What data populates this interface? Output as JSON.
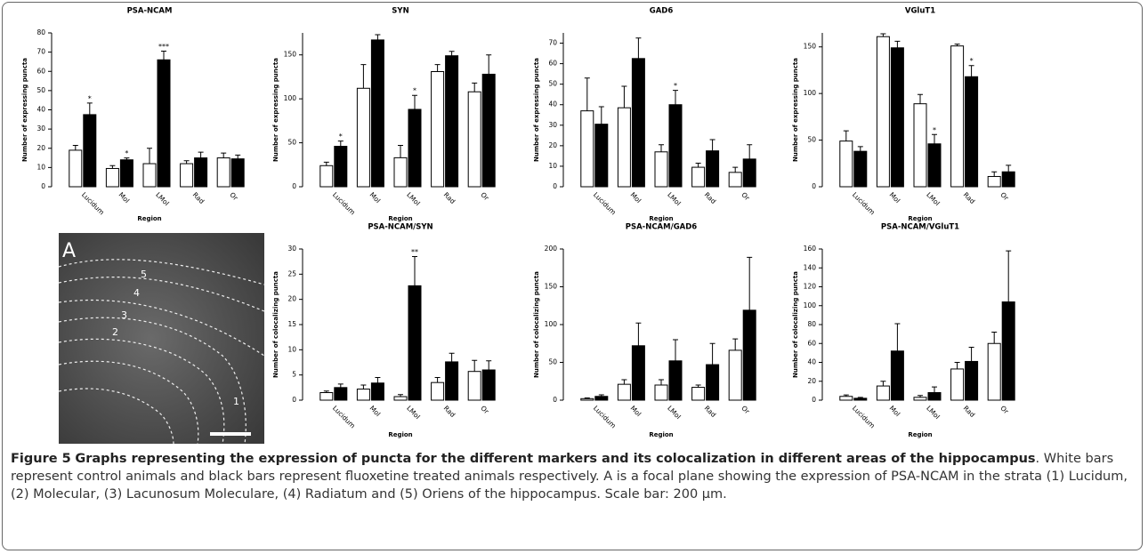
{
  "chart_data": [
    {
      "type": "bar",
      "title": "PSA-NCAM",
      "xlabel": "Region",
      "ylabel": "Number of expressing puncta",
      "categories": [
        "Lucidum",
        "Mol",
        "LMol",
        "Rad",
        "Or"
      ],
      "ylim": [
        0,
        80
      ],
      "yticks": [
        0,
        10,
        20,
        30,
        40,
        50,
        60,
        70,
        80
      ],
      "series": [
        {
          "color": "#ffffff",
          "values": [
            19,
            9.5,
            12,
            12,
            15
          ],
          "errors": [
            2.5,
            1.5,
            8,
            1.5,
            2.5
          ]
        },
        {
          "color": "#000000",
          "values": [
            37.5,
            14,
            66,
            15,
            14.5
          ],
          "errors": [
            6,
            1,
            4.5,
            3,
            2
          ],
          "significance": [
            "*",
            "*",
            "***",
            null,
            null
          ]
        }
      ]
    },
    {
      "type": "bar",
      "title": "SYN",
      "xlabel": "Region",
      "ylabel": "Number of expressing puncta",
      "categories": [
        "Lucidum",
        "Mol",
        "LMol",
        "Rad",
        "Or"
      ],
      "ylim": [
        0,
        175
      ],
      "yticks": [
        0,
        50,
        100,
        150
      ],
      "series": [
        {
          "color": "#ffffff",
          "values": [
            24,
            112,
            33,
            131,
            108
          ],
          "errors": [
            4,
            27,
            14,
            8,
            10
          ]
        },
        {
          "color": "#000000",
          "values": [
            46,
            167,
            88,
            149,
            128
          ],
          "errors": [
            6,
            6,
            16,
            5,
            22
          ],
          "significance": [
            "*",
            null,
            "*",
            null,
            null
          ]
        }
      ]
    },
    {
      "type": "bar",
      "title": "GAD6",
      "xlabel": "Region",
      "ylabel": "Number of expressing puncta",
      "categories": [
        "Lucidum",
        "Mol",
        "LMol",
        "Rad",
        "Or"
      ],
      "ylim": [
        0,
        75
      ],
      "yticks": [
        0,
        10,
        20,
        30,
        40,
        50,
        60,
        70
      ],
      "series": [
        {
          "color": "#ffffff",
          "values": [
            37,
            38.5,
            17,
            9.5,
            7
          ],
          "errors": [
            16,
            10.5,
            3.5,
            2,
            2.5
          ]
        },
        {
          "color": "#000000",
          "values": [
            30.5,
            62.5,
            40,
            17.5,
            13.5
          ],
          "errors": [
            8.5,
            10,
            7,
            5.5,
            7
          ],
          "significance": [
            null,
            null,
            "*",
            null,
            null
          ]
        }
      ]
    },
    {
      "type": "bar",
      "title": "VGluT1",
      "xlabel": "Region",
      "ylabel": "Number of expressing puncta",
      "categories": [
        "Lucidum",
        "Mol",
        "LMol",
        "Rad",
        "Or"
      ],
      "ylim": [
        0,
        165
      ],
      "yticks": [
        0,
        50,
        100,
        150
      ],
      "series": [
        {
          "color": "#ffffff",
          "values": [
            49,
            161,
            89,
            151,
            11
          ],
          "errors": [
            11,
            3,
            10,
            2,
            5
          ]
        },
        {
          "color": "#000000",
          "values": [
            38,
            149,
            46,
            118,
            16
          ],
          "errors": [
            5,
            7,
            10,
            12,
            7
          ],
          "significance": [
            null,
            null,
            "*",
            "*",
            null
          ]
        }
      ]
    },
    {
      "type": "bar",
      "title": "PSA-NCAM/SYN",
      "xlabel": "Region",
      "ylabel": "Number of colocalizing puncta",
      "categories": [
        "Lucidum",
        "Mol",
        "LMol",
        "Rad",
        "Or"
      ],
      "ylim": [
        0,
        30
      ],
      "yticks": [
        0,
        5,
        10,
        15,
        20,
        25,
        30
      ],
      "series": [
        {
          "color": "#ffffff",
          "values": [
            1.5,
            2.2,
            0.7,
            3.5,
            5.7
          ],
          "errors": [
            0.3,
            0.8,
            0.4,
            1,
            2.2
          ]
        },
        {
          "color": "#000000",
          "values": [
            2.5,
            3.4,
            22.7,
            7.6,
            6.0
          ],
          "errors": [
            0.7,
            1.1,
            5.8,
            1.7,
            1.8
          ],
          "significance": [
            null,
            null,
            "**",
            null,
            null
          ]
        }
      ]
    },
    {
      "type": "bar",
      "title": "PSA-NCAM/GAD6",
      "xlabel": "Region",
      "ylabel": "Number of colocalizing puncta",
      "categories": [
        "Lucidum",
        "Mol",
        "LMol",
        "Rad",
        "Or"
      ],
      "ylim": [
        0,
        200
      ],
      "yticks": [
        0,
        50,
        100,
        150,
        200
      ],
      "series": [
        {
          "color": "#ffffff",
          "values": [
            2,
            21,
            20,
            17,
            66
          ],
          "errors": [
            1,
            6,
            7,
            3,
            15
          ]
        },
        {
          "color": "#000000",
          "values": [
            5,
            72,
            52,
            47,
            119
          ],
          "errors": [
            2,
            30,
            28,
            28,
            70
          ]
        }
      ]
    },
    {
      "type": "bar",
      "title": "PSA-NCAM/VGluT1",
      "xlabel": "Region",
      "ylabel": "Number of colocalizing puncta",
      "categories": [
        "Lucidum",
        "Mol",
        "LMol",
        "Rad",
        "Or"
      ],
      "ylim": [
        0,
        160
      ],
      "yticks": [
        0,
        20,
        40,
        60,
        80,
        100,
        120,
        140,
        160
      ],
      "series": [
        {
          "color": "#ffffff",
          "values": [
            4,
            15,
            3,
            33,
            60
          ],
          "errors": [
            1.5,
            5,
            2,
            7,
            12
          ]
        },
        {
          "color": "#000000",
          "values": [
            2,
            52,
            8,
            41,
            104
          ],
          "errors": [
            1,
            29,
            6,
            15,
            54
          ]
        }
      ]
    }
  ],
  "micrograph": {
    "panel": "A",
    "layer_labels": [
      "1",
      "2",
      "3",
      "4",
      "5"
    ]
  },
  "caption": {
    "label": "Figure 5",
    "title": "Graphs representing the expression of puncta for the different markers and its colocalization in different areas of the hippocampus",
    "text": ". White bars represent control animals and black bars represent fluoxetine treated animals respectively. A is a focal plane showing the expression of PSA-NCAM in the strata (1) Lucidum, (2) Molecular, (3) Lacunosum Moleculare, (4) Radiatum and (5) Oriens of the hippocampus. Scale bar: 200 µm."
  }
}
